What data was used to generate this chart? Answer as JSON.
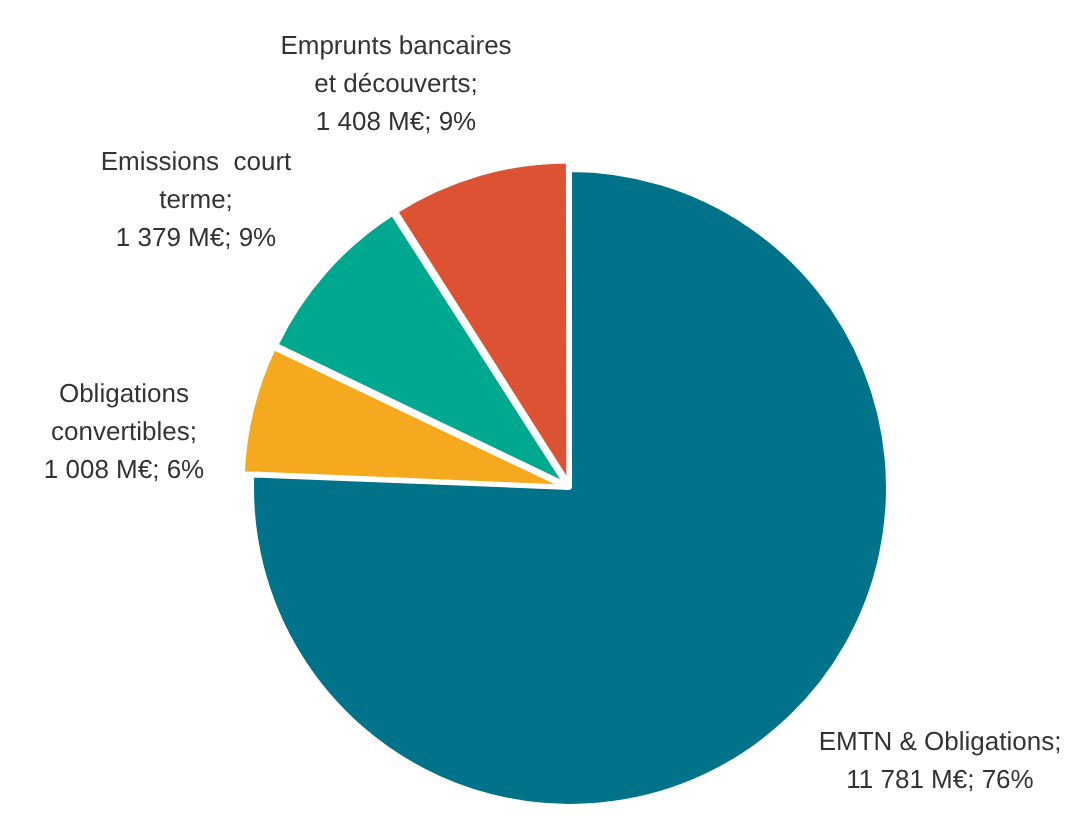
{
  "chart_data": {
    "type": "pie",
    "categories": [
      "EMTN & Obligations",
      "Obligations\nconvertibles",
      "Emissions  court\nterme",
      "Emprunts bancaires\net découverts"
    ],
    "values": [
      11781,
      1008,
      1379,
      1408
    ],
    "value_labels": [
      ";\n11 781 M€; 76%",
      ";\n1 008 M€; 6%",
      ";\n1 379 M€; 9%",
      ";\n1 408 M€; 9%"
    ],
    "colors": [
      "#00728a",
      "#f5a91f",
      "#00a890",
      "#dd5233"
    ],
    "legend": false
  }
}
